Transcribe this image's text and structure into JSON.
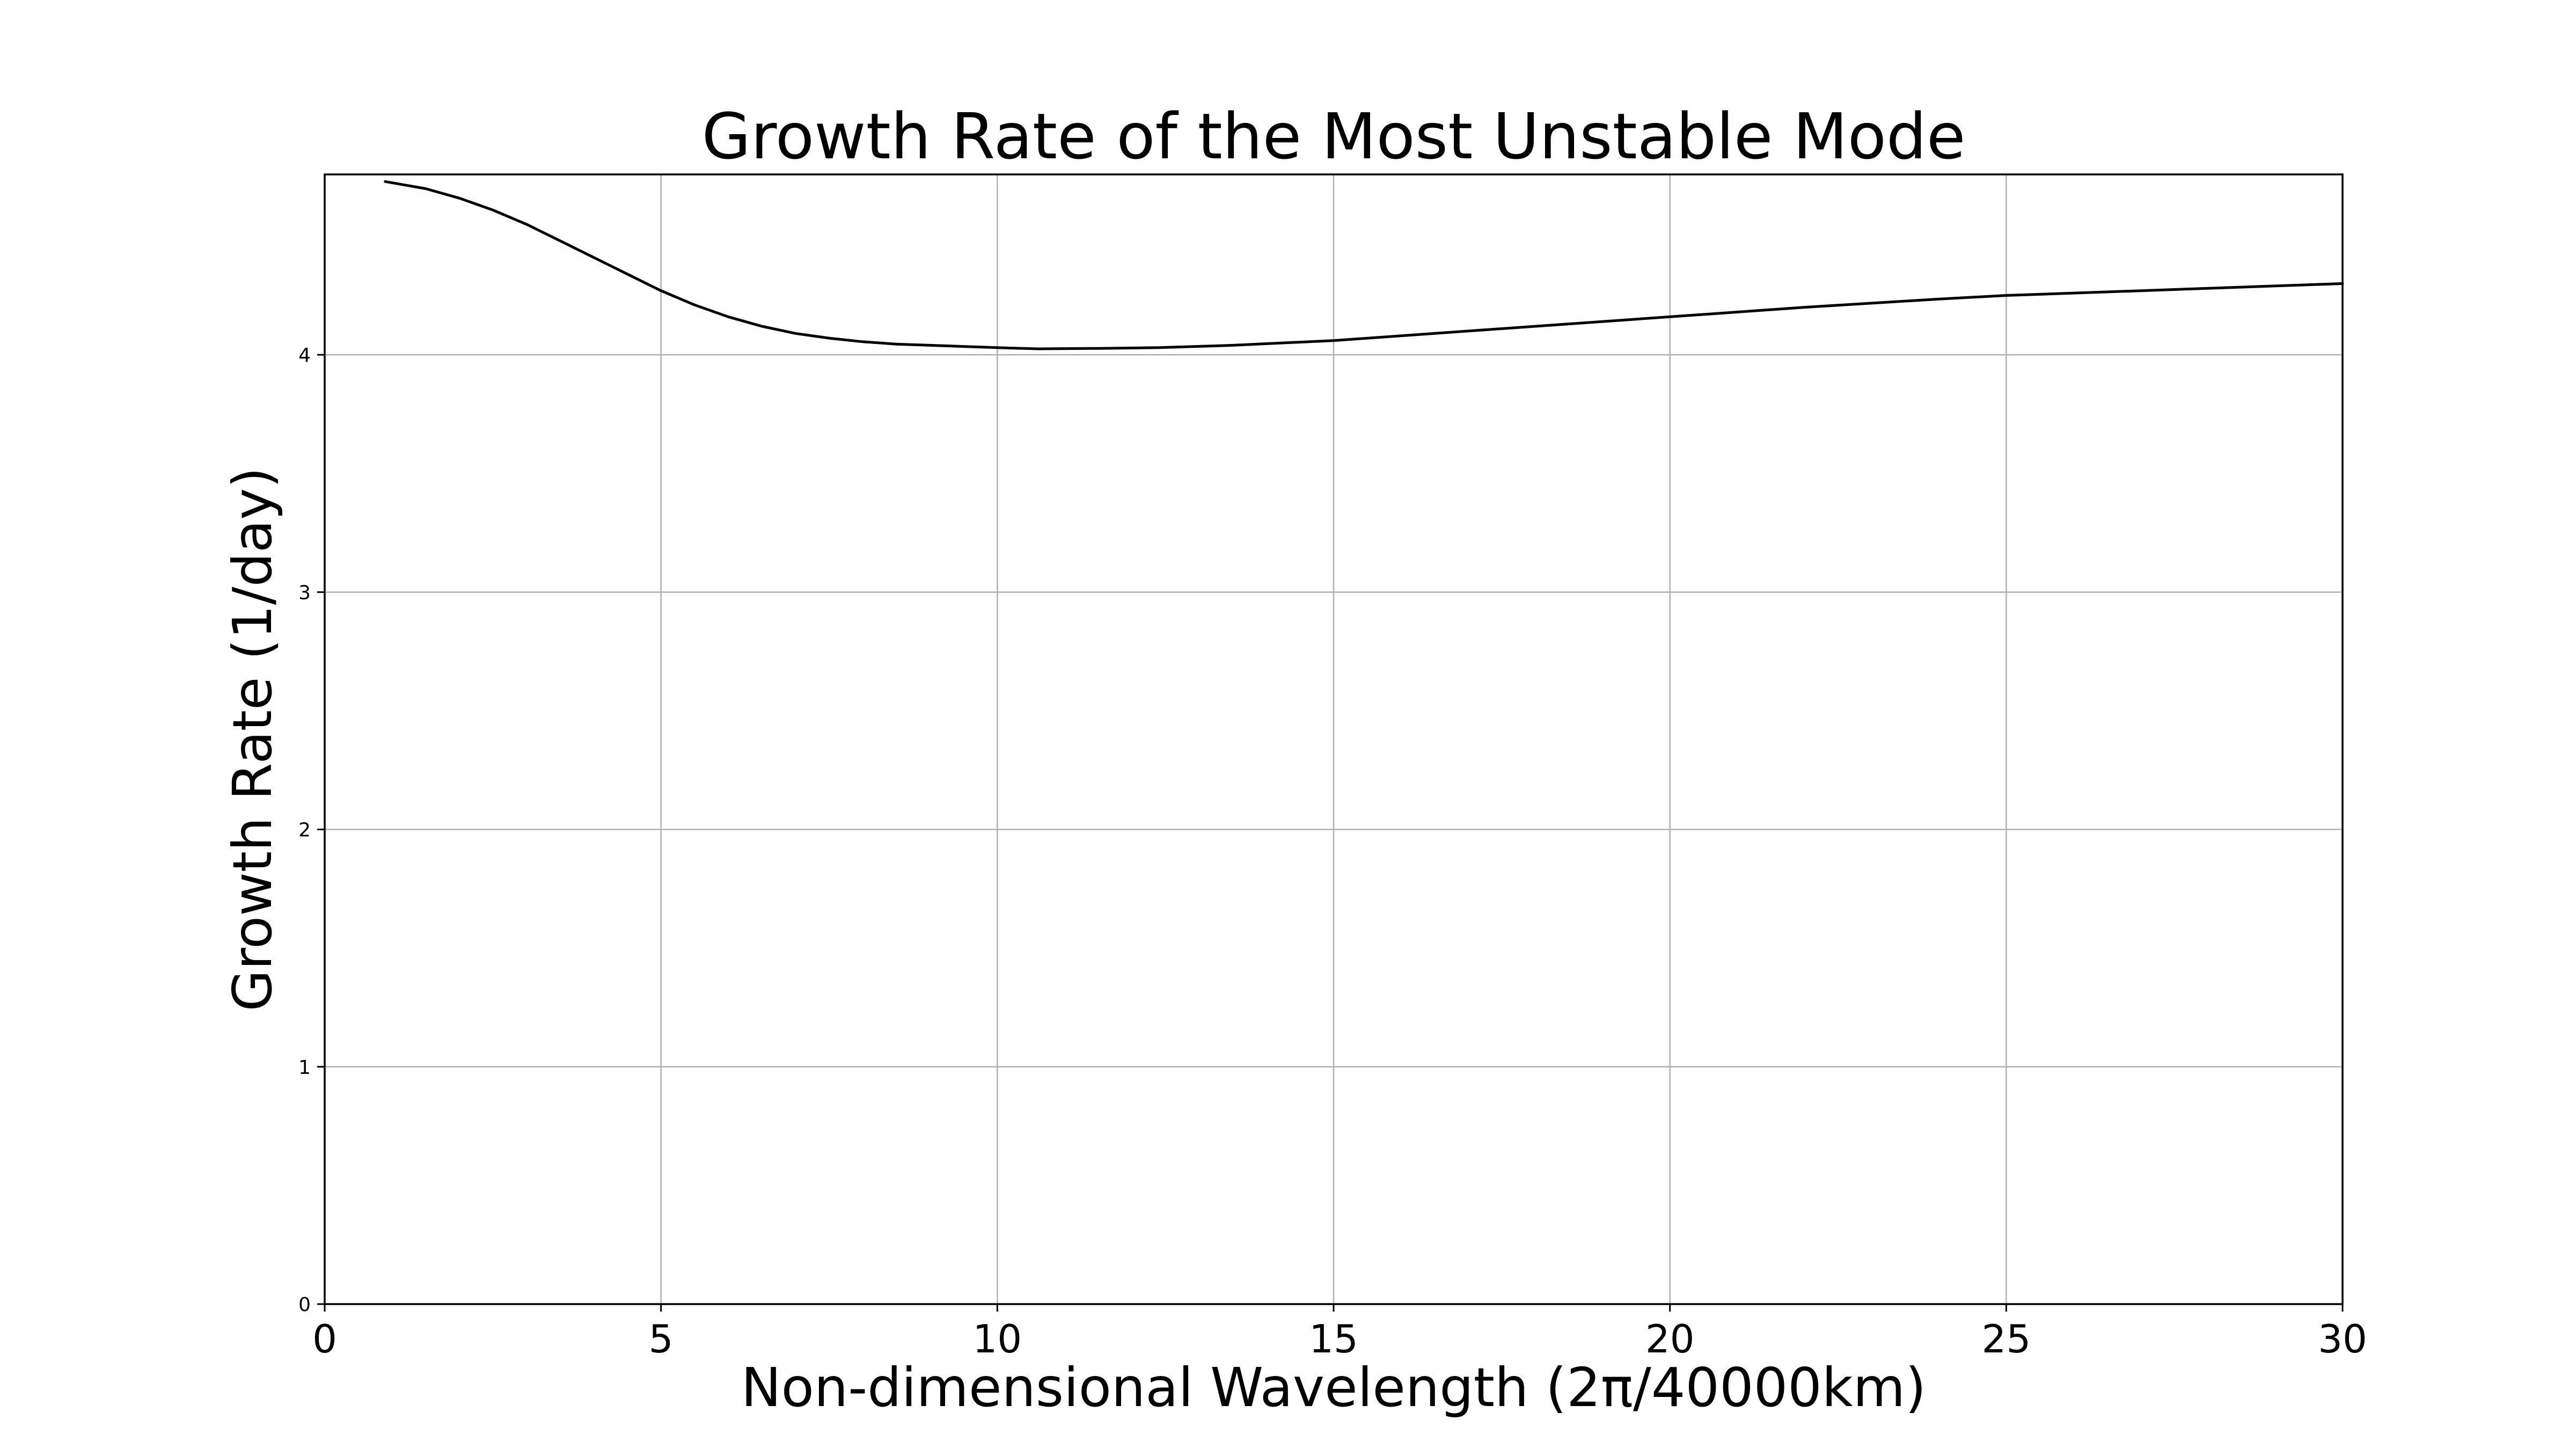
{
  "chart_data": {
    "type": "line",
    "title": "Growth Rate of the Most Unstable Mode",
    "xlabel": "Non-dimensional Wavelength (2π/40000km)",
    "ylabel": "Growth Rate (1/day)",
    "xlim": [
      0,
      30
    ],
    "ylim": [
      0,
      4.76
    ],
    "xticks": [
      0,
      5,
      10,
      15,
      20,
      25,
      30
    ],
    "yticks": [
      0,
      1,
      2,
      3,
      4
    ],
    "grid": true,
    "series": [
      {
        "color": "#000000",
        "x": [
          0.9,
          1.5,
          2.0,
          2.5,
          3.0,
          3.5,
          4.0,
          4.5,
          5.0,
          5.5,
          6.0,
          6.5,
          7.0,
          7.5,
          8.0,
          8.5,
          9.0,
          9.5,
          10.0,
          10.6,
          11.5,
          12.4,
          13.5,
          15.0,
          16.5,
          18.0,
          20.0,
          22.0,
          24.0,
          25.0,
          27.0,
          30.0
        ],
        "y": [
          4.73,
          4.7,
          4.66,
          4.61,
          4.55,
          4.48,
          4.41,
          4.34,
          4.27,
          4.21,
          4.16,
          4.12,
          4.09,
          4.07,
          4.055,
          4.045,
          4.04,
          4.035,
          4.03,
          4.025,
          4.027,
          4.03,
          4.04,
          4.06,
          4.09,
          4.12,
          4.16,
          4.2,
          4.235,
          4.25,
          4.27,
          4.3
        ]
      }
    ]
  }
}
